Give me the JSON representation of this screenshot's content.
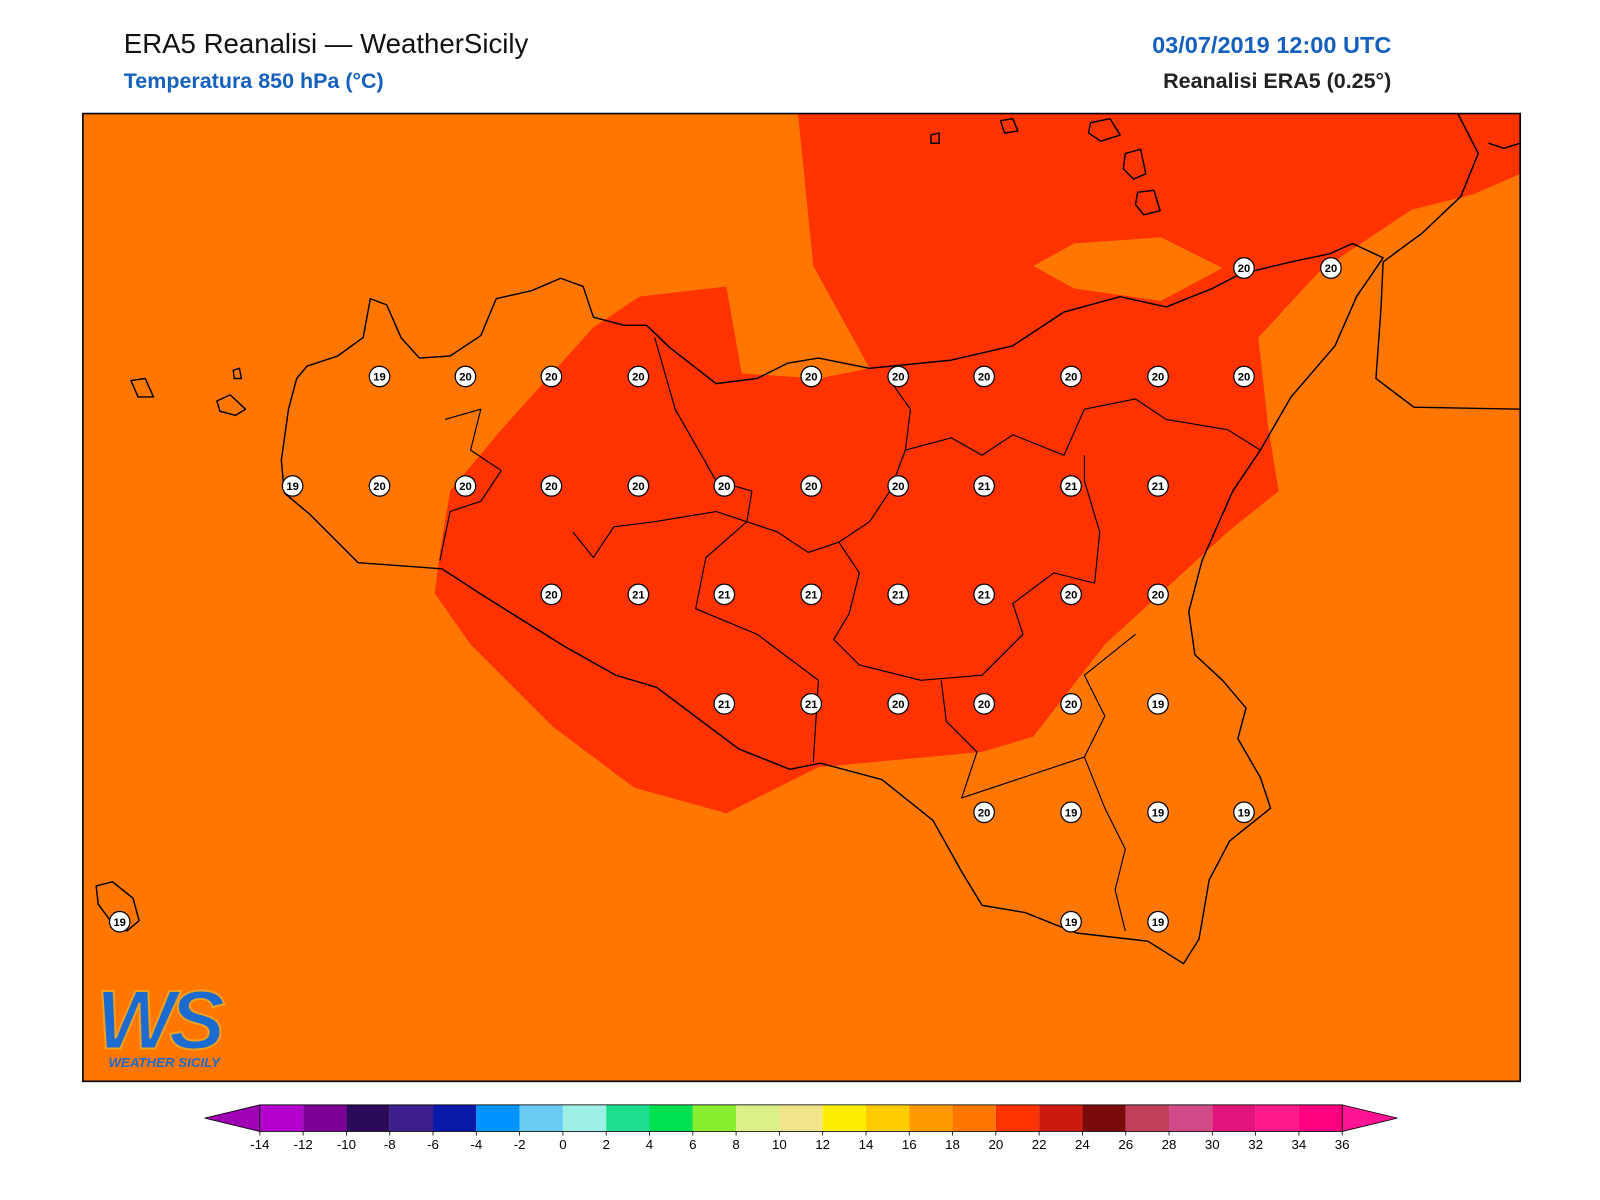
{
  "header": {
    "title": "ERA5 Reanalisi — WeatherSicily",
    "subtitle": "Temperatura 850 hPa (°C)",
    "datetime": "03/07/2019 12:00 UTC",
    "source": "Reanalisi ERA5 (0.25°)"
  },
  "map": {
    "stations": [
      20,
      20,
      19,
      20,
      20,
      20,
      20,
      20,
      20,
      20,
      20,
      20,
      19,
      20,
      20,
      20,
      20,
      20,
      20,
      20,
      21,
      21,
      21,
      20,
      21,
      21,
      21,
      21,
      21,
      20,
      20,
      21,
      21,
      20,
      20,
      20,
      19,
      20,
      19,
      19,
      19,
      19,
      19,
      19
    ]
  },
  "colorbar": {
    "ticks": [
      -14,
      -12,
      -10,
      -8,
      -6,
      -4,
      -2,
      0,
      2,
      4,
      6,
      8,
      10,
      12,
      14,
      16,
      18,
      20,
      22,
      24,
      26,
      28,
      30,
      32,
      34,
      36
    ],
    "under_color": "#a000b4",
    "over_color": "#ff1493",
    "colors": [
      "#b400cc",
      "#7c0096",
      "#2c0a5a",
      "#3c1e8c",
      "#0a1aa8",
      "#0094ff",
      "#6accf4",
      "#9cf0e6",
      "#1ede90",
      "#00e050",
      "#8aee30",
      "#dcf088",
      "#f0e48a",
      "#ffee00",
      "#ffcc00",
      "#ff9900",
      "#ff7700",
      "#ff3300",
      "#cc1a10",
      "#7a0a0a",
      "#c0405a",
      "#d04a88",
      "#e0147a",
      "#ff1a8c",
      "#ff0080"
    ]
  },
  "logo": {
    "text": "WS",
    "caption": "WEATHER SICILY"
  }
}
